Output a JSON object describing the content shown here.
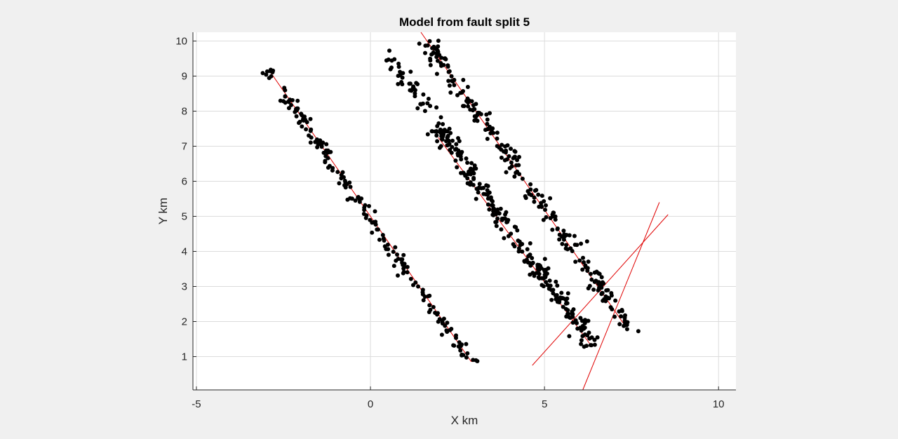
{
  "chart_data": {
    "type": "scatter",
    "title": "Model from fault split 5",
    "xlabel": "X km",
    "ylabel": "Y km",
    "xlim": [
      -5.1,
      10.5
    ],
    "ylim": [
      0.05,
      10.25
    ],
    "xticks": [
      -5,
      0,
      5,
      10
    ],
    "yticks": [
      1,
      2,
      3,
      4,
      5,
      6,
      7,
      8,
      9,
      10
    ],
    "grid": true,
    "point_color": "#000000",
    "line_color": "#e00000",
    "fault_lines": [
      {
        "x": [
          -2.9,
          2.9
        ],
        "y": [
          9.15,
          0.85
        ]
      },
      {
        "x": [
          1.45,
          7.3
        ],
        "y": [
          10.25,
          1.9
        ]
      },
      {
        "x": [
          1.95,
          6.35
        ],
        "y": [
          7.25,
          1.3
        ]
      },
      {
        "x": [
          4.65,
          8.55
        ],
        "y": [
          0.75,
          5.05
        ]
      },
      {
        "x": [
          6.1,
          8.3
        ],
        "y": [
          0.05,
          5.4
        ]
      }
    ],
    "clusters": [
      {
        "name": "",
        "center": [
          [
            -3.0,
            9.2
          ],
          [
            2.9,
            0.8
          ]
        ],
        "count": 190,
        "spread": 0.17
      },
      {
        "name": "",
        "center": [
          [
            0.45,
            9.6
          ],
          [
            3.5,
            5.6
          ]
        ],
        "count": 70,
        "spread": 0.19
      },
      {
        "name": "",
        "center": [
          [
            1.6,
            10.05
          ],
          [
            7.45,
            1.8
          ]
        ],
        "count": 240,
        "spread": 0.22
      },
      {
        "name": "",
        "center": [
          [
            1.85,
            7.5
          ],
          [
            6.4,
            1.4
          ]
        ],
        "count": 240,
        "spread": 0.2
      }
    ],
    "seed": 5
  }
}
